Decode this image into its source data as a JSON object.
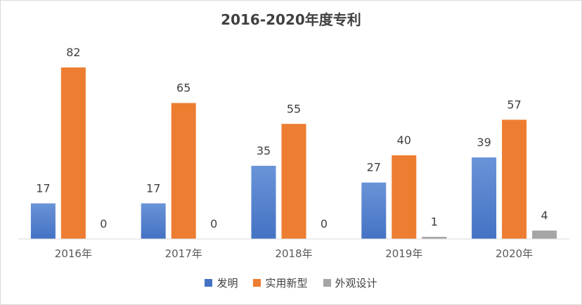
{
  "chart_data": {
    "type": "bar",
    "title": "2016-2020年度专利",
    "categories": [
      "2016年",
      "2017年",
      "2018年",
      "2019年",
      "2020年"
    ],
    "series": [
      {
        "name": "发明",
        "values": [
          17,
          17,
          35,
          27,
          39
        ],
        "color": "#4472c4",
        "color_light": "#6a94d8"
      },
      {
        "name": "实用新型",
        "values": [
          82,
          65,
          55,
          40,
          57
        ],
        "color": "#ed7d31"
      },
      {
        "name": "外观设计",
        "values": [
          0,
          0,
          0,
          1,
          4
        ],
        "color": "#a5a5a5"
      }
    ],
    "ylim": [
      0,
      82
    ],
    "data_labels": true,
    "gridlines": false,
    "legend_position": "bottom"
  }
}
